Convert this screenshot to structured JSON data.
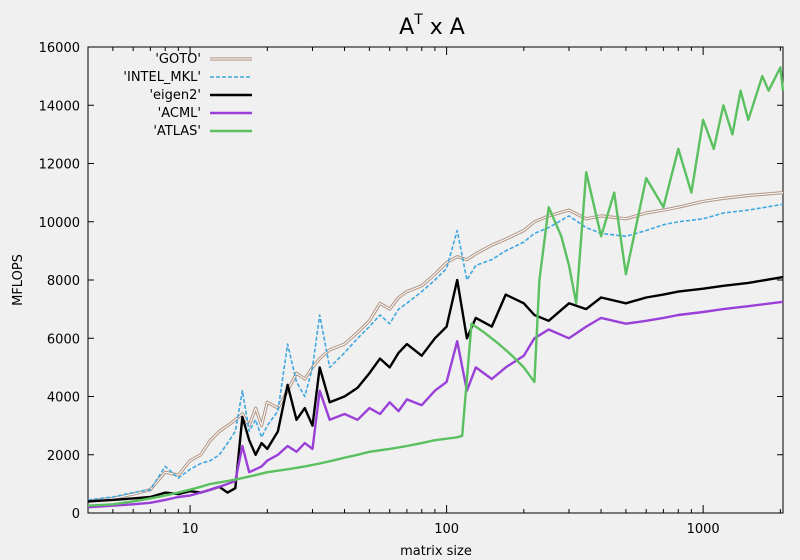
{
  "chart_data": {
    "type": "line",
    "title": {
      "base": "A",
      "sup": "T",
      "rest": " x A"
    },
    "xlabel": "matrix size",
    "ylabel": "MFLOPS",
    "xscale": "log",
    "xlim": [
      4,
      2048
    ],
    "ylim": [
      0,
      16000
    ],
    "x_ticks": [
      10,
      100,
      1000
    ],
    "x_tick_labels": [
      "10",
      "100",
      "1000"
    ],
    "y_ticks": [
      0,
      2000,
      4000,
      6000,
      8000,
      10000,
      12000,
      14000,
      16000
    ],
    "y_tick_labels": [
      "0",
      "2000",
      "4000",
      "6000",
      "8000",
      "10000",
      "12000",
      "14000",
      "16000"
    ],
    "grid": false,
    "legend_position": "top-left",
    "series": [
      {
        "name": "'GOTO'",
        "color": "#b49a8a",
        "style": "double",
        "points": [
          [
            4,
            400
          ],
          [
            5,
            500
          ],
          [
            6,
            650
          ],
          [
            7,
            800
          ],
          [
            8,
            1400
          ],
          [
            9,
            1300
          ],
          [
            10,
            1800
          ],
          [
            11,
            2000
          ],
          [
            12,
            2500
          ],
          [
            13,
            2800
          ],
          [
            14,
            3000
          ],
          [
            15,
            3200
          ],
          [
            16,
            3400
          ],
          [
            17,
            3000
          ],
          [
            18,
            3600
          ],
          [
            19,
            3000
          ],
          [
            20,
            3800
          ],
          [
            22,
            3600
          ],
          [
            24,
            4200
          ],
          [
            26,
            4800
          ],
          [
            28,
            4600
          ],
          [
            30,
            5000
          ],
          [
            32,
            5300
          ],
          [
            35,
            5600
          ],
          [
            40,
            5800
          ],
          [
            45,
            6200
          ],
          [
            50,
            6600
          ],
          [
            55,
            7200
          ],
          [
            60,
            7000
          ],
          [
            65,
            7400
          ],
          [
            70,
            7600
          ],
          [
            80,
            7800
          ],
          [
            90,
            8200
          ],
          [
            100,
            8600
          ],
          [
            110,
            8800
          ],
          [
            120,
            8700
          ],
          [
            130,
            8900
          ],
          [
            150,
            9200
          ],
          [
            170,
            9400
          ],
          [
            200,
            9700
          ],
          [
            220,
            10000
          ],
          [
            250,
            10200
          ],
          [
            300,
            10400
          ],
          [
            350,
            10100
          ],
          [
            400,
            10200
          ],
          [
            500,
            10100
          ],
          [
            600,
            10300
          ],
          [
            700,
            10400
          ],
          [
            800,
            10500
          ],
          [
            1000,
            10700
          ],
          [
            1200,
            10800
          ],
          [
            1500,
            10900
          ],
          [
            2048,
            11000
          ]
        ]
      },
      {
        "name": "'INTEL_MKL'",
        "color": "#40a8e0",
        "style": "dashed",
        "points": [
          [
            4,
            450
          ],
          [
            5,
            550
          ],
          [
            6,
            700
          ],
          [
            7,
            800
          ],
          [
            8,
            1600
          ],
          [
            9,
            1200
          ],
          [
            10,
            1500
          ],
          [
            11,
            1700
          ],
          [
            12,
            1800
          ],
          [
            13,
            2000
          ],
          [
            14,
            2400
          ],
          [
            15,
            2800
          ],
          [
            16,
            4200
          ],
          [
            17,
            2800
          ],
          [
            18,
            3200
          ],
          [
            19,
            2600
          ],
          [
            20,
            3000
          ],
          [
            22,
            3500
          ],
          [
            24,
            5800
          ],
          [
            26,
            4500
          ],
          [
            28,
            4000
          ],
          [
            30,
            5000
          ],
          [
            32,
            6800
          ],
          [
            35,
            5000
          ],
          [
            40,
            5500
          ],
          [
            45,
            6000
          ],
          [
            50,
            6400
          ],
          [
            55,
            6800
          ],
          [
            60,
            6500
          ],
          [
            65,
            7000
          ],
          [
            70,
            7200
          ],
          [
            80,
            7600
          ],
          [
            90,
            8000
          ],
          [
            100,
            8400
          ],
          [
            110,
            9700
          ],
          [
            120,
            8000
          ],
          [
            130,
            8500
          ],
          [
            150,
            8700
          ],
          [
            170,
            9000
          ],
          [
            200,
            9300
          ],
          [
            220,
            9600
          ],
          [
            250,
            9800
          ],
          [
            300,
            10200
          ],
          [
            350,
            9800
          ],
          [
            400,
            9600
          ],
          [
            500,
            9500
          ],
          [
            600,
            9700
          ],
          [
            700,
            9900
          ],
          [
            800,
            10000
          ],
          [
            1000,
            10100
          ],
          [
            1200,
            10300
          ],
          [
            1500,
            10400
          ],
          [
            2048,
            10600
          ]
        ]
      },
      {
        "name": "'eigen2'",
        "color": "#000000",
        "style": "solid",
        "points": [
          [
            4,
            400
          ],
          [
            5,
            450
          ],
          [
            6,
            500
          ],
          [
            7,
            550
          ],
          [
            8,
            700
          ],
          [
            9,
            650
          ],
          [
            10,
            750
          ],
          [
            11,
            700
          ],
          [
            12,
            800
          ],
          [
            13,
            900
          ],
          [
            14,
            700
          ],
          [
            15,
            850
          ],
          [
            16,
            3300
          ],
          [
            17,
            2500
          ],
          [
            18,
            2000
          ],
          [
            19,
            2400
          ],
          [
            20,
            2200
          ],
          [
            22,
            2800
          ],
          [
            24,
            4400
          ],
          [
            26,
            3200
          ],
          [
            28,
            3600
          ],
          [
            30,
            3000
          ],
          [
            32,
            5000
          ],
          [
            35,
            3800
          ],
          [
            40,
            4000
          ],
          [
            45,
            4300
          ],
          [
            50,
            4800
          ],
          [
            55,
            5300
          ],
          [
            60,
            5000
          ],
          [
            65,
            5500
          ],
          [
            70,
            5800
          ],
          [
            80,
            5400
          ],
          [
            90,
            6000
          ],
          [
            100,
            6400
          ],
          [
            110,
            8000
          ],
          [
            120,
            6000
          ],
          [
            130,
            6700
          ],
          [
            150,
            6400
          ],
          [
            170,
            7500
          ],
          [
            200,
            7200
          ],
          [
            220,
            6800
          ],
          [
            250,
            6600
          ],
          [
            300,
            7200
          ],
          [
            350,
            7000
          ],
          [
            400,
            7400
          ],
          [
            500,
            7200
          ],
          [
            600,
            7400
          ],
          [
            700,
            7500
          ],
          [
            800,
            7600
          ],
          [
            1000,
            7700
          ],
          [
            1200,
            7800
          ],
          [
            1500,
            7900
          ],
          [
            2048,
            8100
          ]
        ]
      },
      {
        "name": "'ACML'",
        "color": "#9a40d8",
        "style": "solid",
        "points": [
          [
            4,
            200
          ],
          [
            5,
            250
          ],
          [
            6,
            300
          ],
          [
            7,
            350
          ],
          [
            8,
            450
          ],
          [
            9,
            550
          ],
          [
            10,
            600
          ],
          [
            11,
            700
          ],
          [
            12,
            800
          ],
          [
            13,
            900
          ],
          [
            14,
            1000
          ],
          [
            15,
            1100
          ],
          [
            16,
            2300
          ],
          [
            17,
            1400
          ],
          [
            18,
            1500
          ],
          [
            19,
            1600
          ],
          [
            20,
            1800
          ],
          [
            22,
            2000
          ],
          [
            24,
            2300
          ],
          [
            26,
            2100
          ],
          [
            28,
            2400
          ],
          [
            30,
            2200
          ],
          [
            32,
            4200
          ],
          [
            35,
            3200
          ],
          [
            40,
            3400
          ],
          [
            45,
            3200
          ],
          [
            50,
            3600
          ],
          [
            55,
            3400
          ],
          [
            60,
            3800
          ],
          [
            65,
            3500
          ],
          [
            70,
            3900
          ],
          [
            80,
            3700
          ],
          [
            90,
            4200
          ],
          [
            100,
            4500
          ],
          [
            110,
            5900
          ],
          [
            120,
            4200
          ],
          [
            130,
            5000
          ],
          [
            150,
            4600
          ],
          [
            170,
            5000
          ],
          [
            200,
            5400
          ],
          [
            220,
            6000
          ],
          [
            250,
            6300
          ],
          [
            300,
            6000
          ],
          [
            350,
            6400
          ],
          [
            400,
            6700
          ],
          [
            500,
            6500
          ],
          [
            600,
            6600
          ],
          [
            700,
            6700
          ],
          [
            800,
            6800
          ],
          [
            1000,
            6900
          ],
          [
            1200,
            7000
          ],
          [
            1500,
            7100
          ],
          [
            2048,
            7250
          ]
        ]
      },
      {
        "name": "'ATLAS'",
        "color": "#5ac060",
        "style": "solid",
        "points": [
          [
            4,
            250
          ],
          [
            5,
            300
          ],
          [
            6,
            400
          ],
          [
            7,
            500
          ],
          [
            8,
            600
          ],
          [
            9,
            700
          ],
          [
            10,
            800
          ],
          [
            11,
            900
          ],
          [
            12,
            1000
          ],
          [
            13,
            1050
          ],
          [
            14,
            1100
          ],
          [
            15,
            1150
          ],
          [
            16,
            1200
          ],
          [
            18,
            1300
          ],
          [
            20,
            1400
          ],
          [
            24,
            1500
          ],
          [
            28,
            1600
          ],
          [
            32,
            1700
          ],
          [
            36,
            1800
          ],
          [
            40,
            1900
          ],
          [
            45,
            2000
          ],
          [
            50,
            2100
          ],
          [
            60,
            2200
          ],
          [
            70,
            2300
          ],
          [
            80,
            2400
          ],
          [
            90,
            2500
          ],
          [
            100,
            2550
          ],
          [
            110,
            2600
          ],
          [
            115,
            2650
          ],
          [
            125,
            6500
          ],
          [
            140,
            6200
          ],
          [
            160,
            5800
          ],
          [
            180,
            5400
          ],
          [
            200,
            5000
          ],
          [
            220,
            4500
          ],
          [
            230,
            8000
          ],
          [
            250,
            10500
          ],
          [
            280,
            9500
          ],
          [
            300,
            8500
          ],
          [
            320,
            7200
          ],
          [
            350,
            11700
          ],
          [
            400,
            9500
          ],
          [
            450,
            11000
          ],
          [
            500,
            8200
          ],
          [
            600,
            11500
          ],
          [
            700,
            10500
          ],
          [
            800,
            12500
          ],
          [
            900,
            11000
          ],
          [
            1000,
            13500
          ],
          [
            1100,
            12500
          ],
          [
            1200,
            14000
          ],
          [
            1300,
            13000
          ],
          [
            1400,
            14500
          ],
          [
            1500,
            13500
          ],
          [
            1700,
            15000
          ],
          [
            1800,
            14500
          ],
          [
            2000,
            15300
          ],
          [
            2048,
            14500
          ]
        ]
      }
    ]
  }
}
